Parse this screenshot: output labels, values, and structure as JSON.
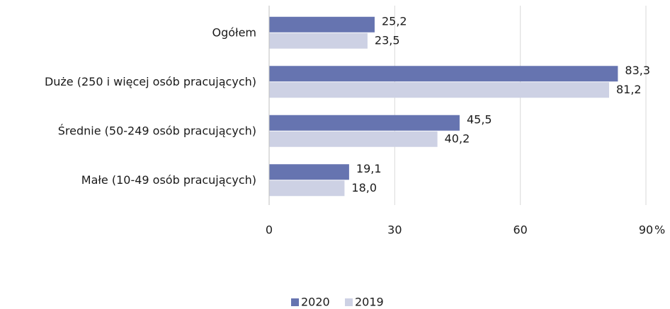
{
  "chart_data": {
    "type": "bar",
    "orientation": "horizontal",
    "categories": [
      "Ogółem",
      "Duże (250 i więcej osób pracujących)",
      "Średnie (50-249 osób pracujących)",
      "Małe (10-49 osób pracujących)"
    ],
    "series": [
      {
        "name": "2020",
        "color": "#6674b0",
        "values": [
          25.2,
          83.3,
          45.5,
          19.1
        ],
        "value_labels": [
          "25,2",
          "83,3",
          "45,5",
          "19,1"
        ]
      },
      {
        "name": "2019",
        "color": "#cdd1e4",
        "values": [
          23.5,
          81.2,
          40.2,
          18.0
        ],
        "value_labels": [
          "23,5",
          "81,2",
          "40,2",
          "18,0"
        ]
      }
    ],
    "xlim": [
      0,
      90
    ],
    "xticks": [
      0,
      30,
      60,
      90
    ],
    "x_unit": "%",
    "grid": true,
    "legend": "bottom"
  }
}
